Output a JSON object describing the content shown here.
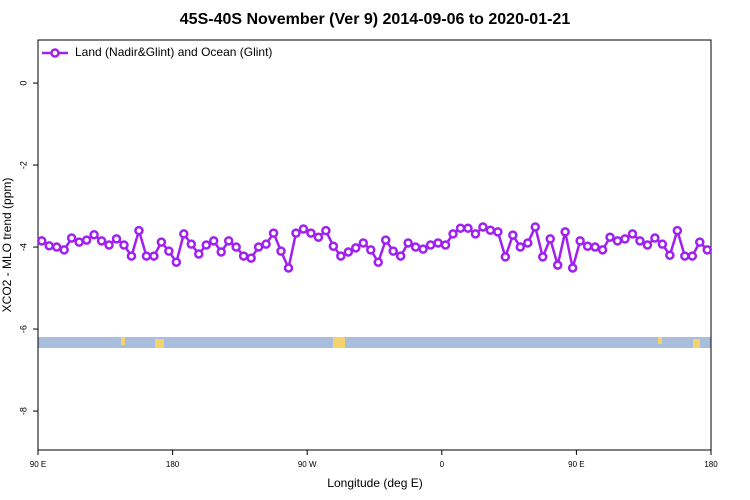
{
  "chart_data": {
    "type": "line",
    "title": "45S-40S November (Ver 9)   2014-09-06 to 2020-01-21",
    "x_label": "Longitude (deg E)",
    "y_label": "XCO2 - MLO trend (ppm)",
    "xlim": [
      90,
      540
    ],
    "ylim": [
      -8.95,
      1.05
    ],
    "xticks": [
      {
        "value": 90,
        "label": "90 E"
      },
      180,
      {
        "value": 270,
        "label": "90 W"
      },
      {
        "value": 360,
        "label": "0"
      },
      {
        "value": 450,
        "label": "90 E"
      },
      {
        "value": 540,
        "label": "180"
      }
    ],
    "yticks": [
      0,
      -2,
      -4,
      -6,
      -8
    ],
    "legend": "top-left",
    "series": [
      {
        "name": "Land (Nadir&Glint) and Ocean (Glint)",
        "color": "#a020f0",
        "x": [
          92.5,
          97.5,
          102.5,
          107.5,
          112.5,
          117.5,
          122.5,
          127.5,
          132.5,
          137.5,
          142.5,
          147.5,
          152.5,
          157.5,
          162.5,
          167.5,
          172.5,
          177.5,
          182.5,
          187.5,
          192.5,
          197.5,
          202.5,
          207.5,
          212.5,
          217.5,
          222.5,
          227.5,
          232.5,
          237.5,
          242.5,
          247.5,
          252.5,
          257.5,
          262.5,
          267.5,
          272.5,
          277.5,
          282.5,
          287.5,
          292.5,
          297.5,
          302.5,
          307.5,
          312.5,
          317.5,
          322.5,
          327.5,
          332.5,
          337.5,
          342.5,
          347.5,
          352.5,
          357.5,
          362.5,
          367.5,
          372.5,
          377.5,
          382.5,
          387.5,
          392.5,
          397.5,
          402.5,
          407.5,
          412.5,
          417.5,
          422.5,
          427.5,
          432.5,
          437.5,
          442.5,
          447.5,
          452.5,
          457.5,
          462.5,
          467.5,
          472.5,
          477.5,
          482.5,
          487.5,
          492.5,
          497.5,
          502.5,
          507.5,
          512.5,
          517.5,
          522.5,
          527.5,
          532.5,
          537.5
        ],
        "values": [
          -3.85,
          -3.97,
          -4.0,
          -4.07,
          -3.78,
          -3.88,
          -3.83,
          -3.7,
          -3.85,
          -3.95,
          -3.8,
          -3.95,
          -4.22,
          -3.6,
          -4.22,
          -4.22,
          -3.88,
          -4.1,
          -4.37,
          -3.68,
          -3.93,
          -4.17,
          -3.95,
          -3.85,
          -4.12,
          -3.85,
          -4.0,
          -4.22,
          -4.27,
          -4.0,
          -3.93,
          -3.66,
          -4.1,
          -4.51,
          -3.66,
          -3.56,
          -3.66,
          -3.76,
          -3.6,
          -3.98,
          -4.22,
          -4.12,
          -4.02,
          -3.9,
          -4.07,
          -4.37,
          -3.83,
          -4.1,
          -4.22,
          -3.9,
          -4.0,
          -4.05,
          -3.95,
          -3.9,
          -3.95,
          -3.68,
          -3.54,
          -3.54,
          -3.68,
          -3.51,
          -3.59,
          -3.63,
          -4.24,
          -3.71,
          -4.0,
          -3.9,
          -3.51,
          -4.24,
          -3.8,
          -4.44,
          -3.63,
          -4.51,
          -3.85,
          -3.98,
          -4.0,
          -4.07,
          -3.76,
          -3.85,
          -3.8,
          -3.68,
          -3.85,
          -3.95,
          -3.78,
          -3.93,
          -4.2,
          -3.6,
          -4.22,
          -4.22,
          -3.88,
          -4.07
        ]
      }
    ]
  }
}
